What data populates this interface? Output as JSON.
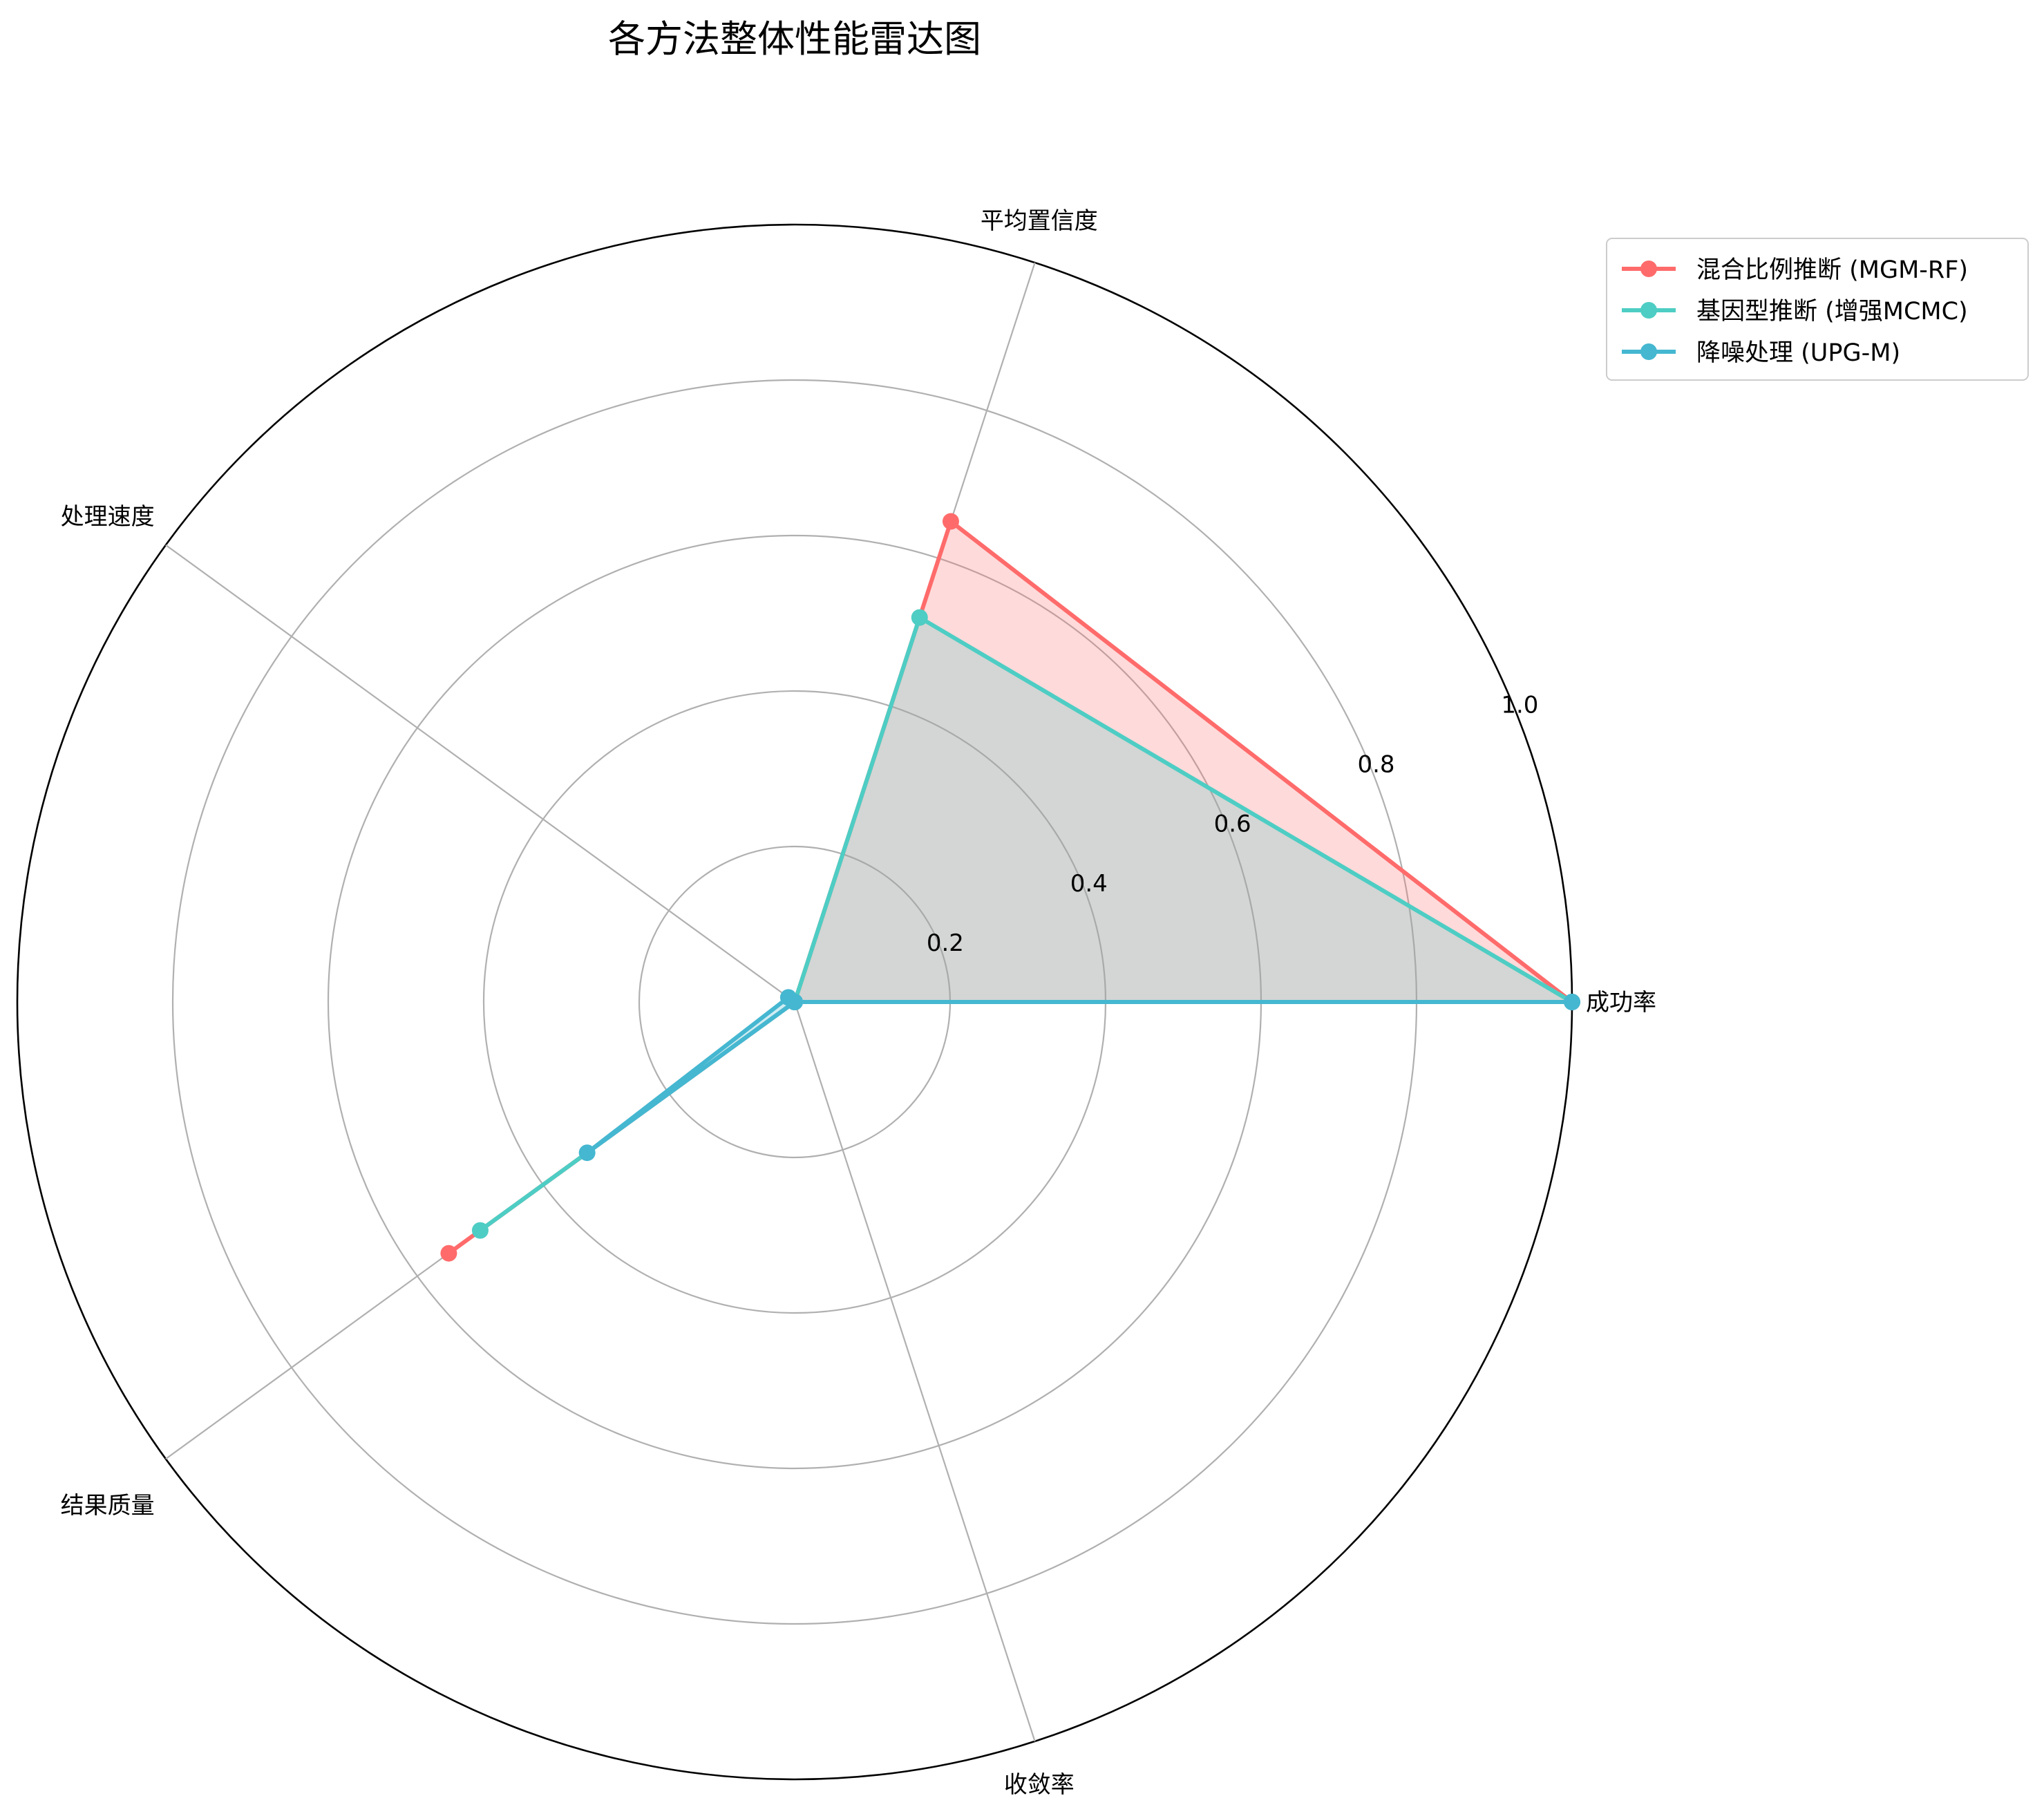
{
  "chart_data": {
    "type": "radar",
    "title": "各方法整体性能雷达图",
    "axes": [
      "成功率",
      "平均置信度",
      "处理速度",
      "结果质量",
      "收敛率"
    ],
    "rlim": [
      0,
      1.0
    ],
    "r_ticks": [
      0.2,
      0.4,
      0.6,
      0.8,
      1.0
    ],
    "r_tick_labels": [
      "0.2",
      "0.4",
      "0.6",
      "0.8",
      "1.0"
    ],
    "grid": true,
    "legend_position": "top-right",
    "series": [
      {
        "name": "混合比例推断 (MGM-RF)",
        "color": "#ff6b6b",
        "values": [
          1.0,
          0.65,
          0.0,
          0.55,
          0.0
        ]
      },
      {
        "name": "基因型推断 (增强MCMC)",
        "color": "#4ecdc4",
        "values": [
          1.0,
          0.52,
          0.0,
          0.5,
          0.0
        ]
      },
      {
        "name": "降噪处理 (UPG-M)",
        "color": "#45b7d1",
        "values": [
          1.0,
          0.0,
          0.01,
          0.33,
          0.0
        ]
      }
    ]
  }
}
